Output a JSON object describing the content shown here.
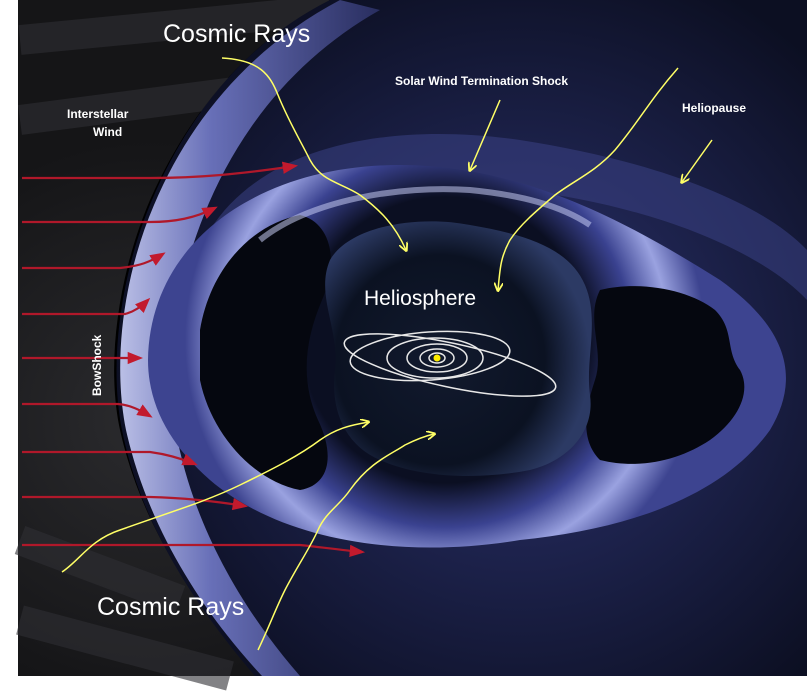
{
  "diagram": {
    "labels": {
      "cosmic_rays_top": "Cosmic Rays",
      "cosmic_rays_bottom": "Cosmic Rays",
      "interstellar_wind_line1": "Interstellar",
      "interstellar_wind_line2": "Wind",
      "termination_shock": "Solar Wind Termination Shock",
      "heliopause": "Heliopause",
      "heliosphere": "Heliosphere",
      "bow_shock": "BowShock"
    },
    "colors": {
      "space_background": "#000000",
      "interstellar_region": "#1b1b1d",
      "outer_sheath": "#252a4f",
      "bow_shock_rim": "#8e96d6",
      "termination_rim": "#a8b0e6",
      "inner_cavity": "#0b0f1e",
      "wind_arrows": "#b0182a",
      "cosmic_ray_paths": "#ffff66",
      "label_arrows": "#ffff66",
      "orbits": "#e8e8e8",
      "sun": "#ffee00"
    },
    "interstellar_wind_arrow_count": 9,
    "planet_orbit_count": 6
  }
}
